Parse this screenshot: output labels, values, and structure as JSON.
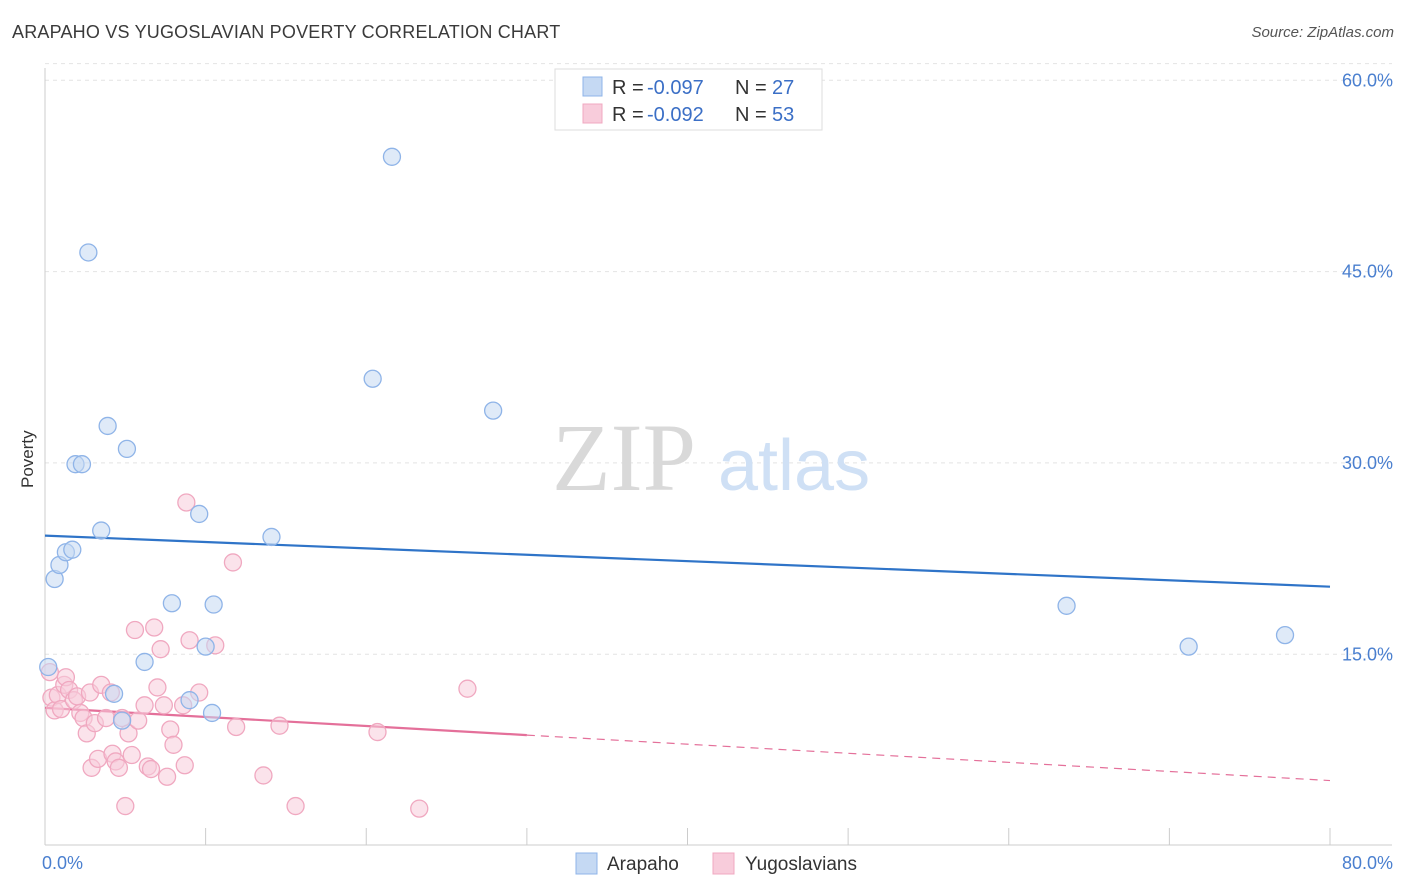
{
  "header": {
    "title": "ARAPAHO VS YUGOSLAVIAN POVERTY CORRELATION CHART",
    "source": "Source: ZipAtlas.com"
  },
  "watermark": {
    "zip": "ZIP",
    "atlas": "atlas"
  },
  "chart_data": {
    "type": "scatter",
    "title": "ARAPAHO VS YUGOSLAVIAN POVERTY CORRELATION CHART",
    "xlabel": "",
    "ylabel": "Poverty",
    "xlim": [
      0,
      80
    ],
    "ylim": [
      0,
      62
    ],
    "x_tick_labels": [
      "0.0%",
      "80.0%"
    ],
    "y_ticks": [
      15,
      30,
      45,
      60
    ],
    "y_tick_labels": [
      "15.0%",
      "30.0%",
      "45.0%",
      "60.0%"
    ],
    "grid": true,
    "legend": {
      "placement": "top-center",
      "entries": [
        {
          "r_label": "R = ",
          "r_value": "-0.097",
          "n_label": "N = ",
          "n_value": "27"
        },
        {
          "r_label": "R = ",
          "r_value": "-0.092",
          "n_label": "N = ",
          "n_value": "53"
        }
      ]
    },
    "series": [
      {
        "name": "Arapaho",
        "color": "#8fb4e8",
        "fill": "#c5d9f3",
        "line_color": "#2f74c8",
        "trend": {
          "x0": 0,
          "y0": 24.3,
          "x1": 80,
          "y1": 20.3,
          "solid_until": 80
        },
        "points": [
          [
            0.2,
            14.0
          ],
          [
            0.6,
            20.9
          ],
          [
            0.9,
            22.0
          ],
          [
            1.3,
            23.0
          ],
          [
            1.7,
            23.2
          ],
          [
            1.9,
            29.9
          ],
          [
            2.3,
            29.9
          ],
          [
            2.7,
            46.5
          ],
          [
            3.5,
            24.7
          ],
          [
            3.9,
            32.9
          ],
          [
            4.3,
            11.9
          ],
          [
            4.8,
            9.8
          ],
          [
            5.1,
            31.1
          ],
          [
            6.2,
            14.4
          ],
          [
            7.9,
            19.0
          ],
          [
            9.0,
            11.4
          ],
          [
            9.6,
            26.0
          ],
          [
            10.0,
            15.6
          ],
          [
            10.4,
            10.4
          ],
          [
            10.5,
            18.9
          ],
          [
            14.1,
            24.2
          ],
          [
            20.4,
            36.6
          ],
          [
            21.6,
            54.0
          ],
          [
            27.9,
            34.1
          ],
          [
            63.6,
            18.8
          ],
          [
            71.2,
            15.6
          ],
          [
            77.2,
            16.5
          ]
        ]
      },
      {
        "name": "Yugoslavians",
        "color": "#f0a8c0",
        "fill": "#f8ccdb",
        "line_color": "#e4709a",
        "trend": {
          "x0": 0,
          "y0": 10.8,
          "x1": 80,
          "y1": 5.1,
          "solid_until": 30
        },
        "points": [
          [
            0.3,
            13.6
          ],
          [
            0.4,
            11.6
          ],
          [
            0.6,
            10.6
          ],
          [
            0.8,
            11.8
          ],
          [
            1.0,
            10.7
          ],
          [
            1.2,
            12.6
          ],
          [
            1.3,
            13.2
          ],
          [
            1.5,
            12.2
          ],
          [
            1.8,
            11.4
          ],
          [
            2.0,
            11.7
          ],
          [
            2.2,
            10.4
          ],
          [
            2.4,
            10.0
          ],
          [
            2.6,
            8.8
          ],
          [
            2.8,
            12.0
          ],
          [
            2.9,
            6.1
          ],
          [
            3.1,
            9.6
          ],
          [
            3.3,
            6.8
          ],
          [
            3.5,
            12.6
          ],
          [
            3.8,
            10.0
          ],
          [
            4.1,
            12.0
          ],
          [
            4.2,
            7.2
          ],
          [
            4.4,
            6.6
          ],
          [
            4.6,
            6.1
          ],
          [
            4.8,
            10.0
          ],
          [
            5.0,
            3.1
          ],
          [
            5.2,
            8.8
          ],
          [
            5.4,
            7.1
          ],
          [
            5.6,
            16.9
          ],
          [
            5.8,
            9.8
          ],
          [
            6.2,
            11.0
          ],
          [
            6.4,
            6.2
          ],
          [
            6.6,
            6.0
          ],
          [
            6.8,
            17.1
          ],
          [
            7.0,
            12.4
          ],
          [
            7.2,
            15.4
          ],
          [
            7.4,
            11.0
          ],
          [
            7.6,
            5.4
          ],
          [
            7.8,
            9.1
          ],
          [
            8.0,
            7.9
          ],
          [
            8.6,
            11.0
          ],
          [
            8.7,
            6.3
          ],
          [
            8.8,
            26.9
          ],
          [
            9.0,
            16.1
          ],
          [
            9.6,
            12.0
          ],
          [
            10.6,
            15.7
          ],
          [
            11.7,
            22.2
          ],
          [
            11.9,
            9.3
          ],
          [
            13.6,
            5.5
          ],
          [
            14.6,
            9.4
          ],
          [
            15.6,
            3.1
          ],
          [
            20.7,
            8.9
          ],
          [
            23.3,
            2.9
          ],
          [
            26.3,
            12.3
          ]
        ]
      }
    ]
  }
}
